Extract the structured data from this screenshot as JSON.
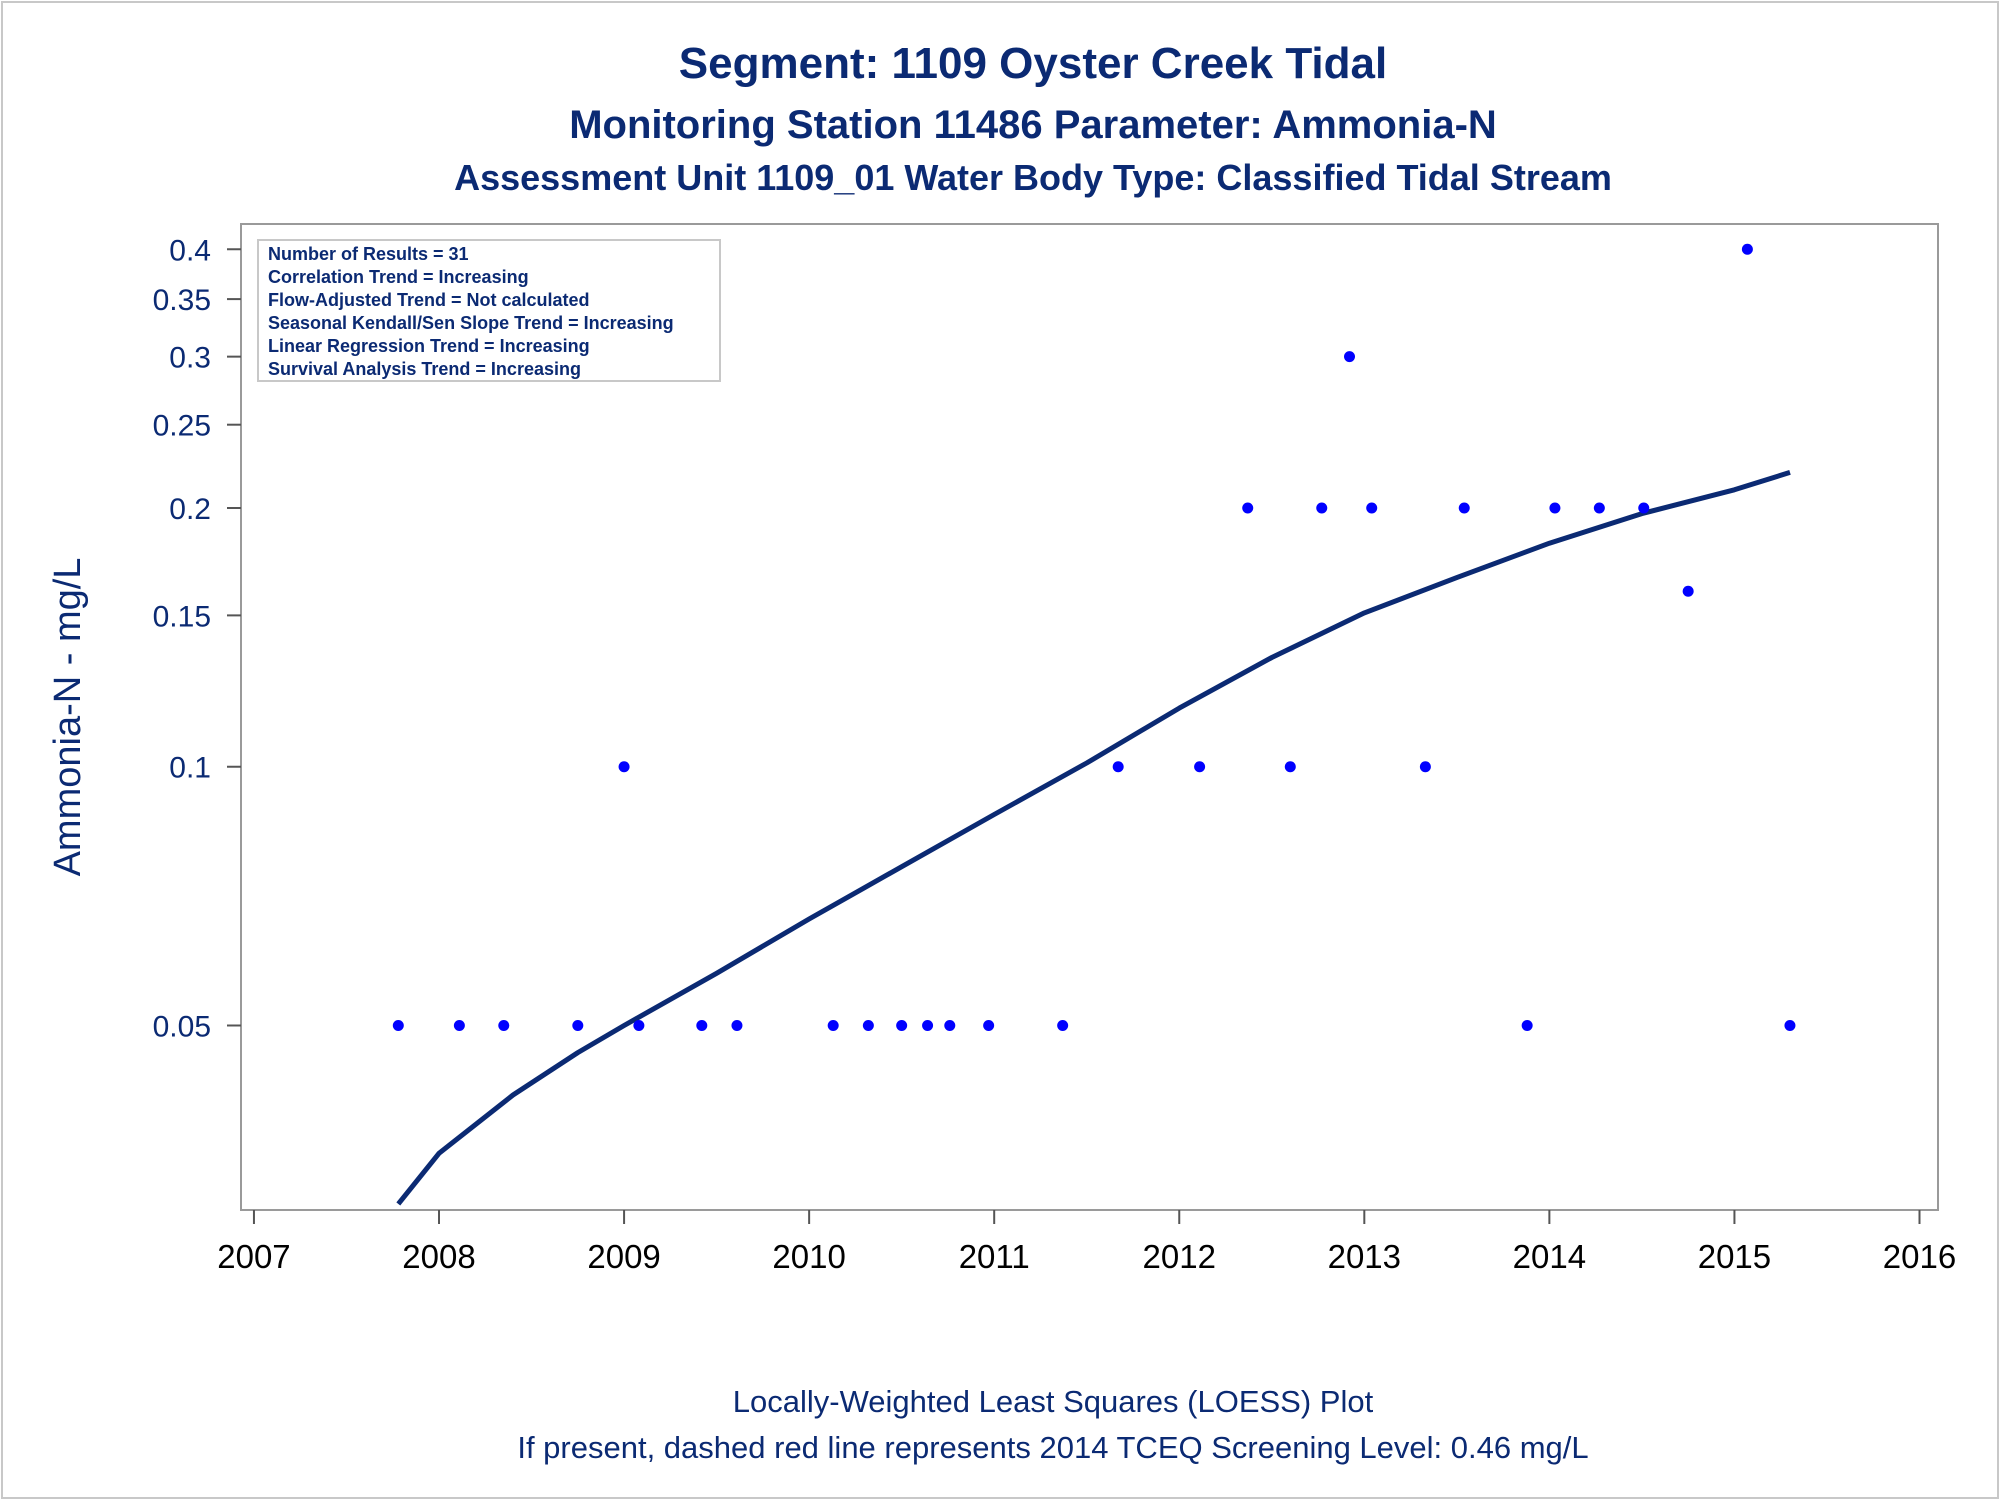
{
  "chart_data": {
    "type": "scatter",
    "title": "Segment: 1109  Oyster Creek Tidal",
    "subtitle": "Monitoring Station 11486 Parameter: Ammonia-N",
    "subtitle2": "Assessment Unit 1109_01   Water Body Type: Classified Tidal Stream",
    "xlabel": "",
    "ylabel": "Ammonia-N - mg/L",
    "x_ticks": [
      "2007",
      "2008",
      "2009",
      "2010",
      "2011",
      "2012",
      "2013",
      "2014",
      "2015",
      "2016"
    ],
    "y_ticks": [
      "0.05",
      "0.1",
      "0.15",
      "0.2",
      "0.25",
      "0.3",
      "0.35",
      "0.4"
    ],
    "xlim": [
      2006.93,
      2016.1
    ],
    "ylim": [
      0.0305,
      0.428
    ],
    "y_scale": "log",
    "grid": false,
    "stats_box": [
      "Number of Results = 31",
      "Correlation Trend = Increasing",
      "Flow-Adjusted Trend = Not calculated",
      "Seasonal Kendall/Sen Slope Trend = Increasing",
      "Linear Regression Trend = Increasing",
      "Survival Analysis Trend = Increasing"
    ],
    "stats_box_position": "top-left",
    "series": [
      {
        "type": "scatter",
        "color": "#0000ff",
        "points": [
          [
            2007.78,
            0.05
          ],
          [
            2008.11,
            0.05
          ],
          [
            2008.35,
            0.05
          ],
          [
            2008.75,
            0.05
          ],
          [
            2009.0,
            0.1
          ],
          [
            2009.08,
            0.05
          ],
          [
            2009.42,
            0.05
          ],
          [
            2009.61,
            0.05
          ],
          [
            2010.13,
            0.05
          ],
          [
            2010.32,
            0.05
          ],
          [
            2010.5,
            0.05
          ],
          [
            2010.64,
            0.05
          ],
          [
            2010.76,
            0.05
          ],
          [
            2010.97,
            0.05
          ],
          [
            2011.37,
            0.05
          ],
          [
            2011.67,
            0.1
          ],
          [
            2012.11,
            0.1
          ],
          [
            2012.37,
            0.2
          ],
          [
            2012.6,
            0.1
          ],
          [
            2012.77,
            0.2
          ],
          [
            2012.92,
            0.3
          ],
          [
            2013.04,
            0.2
          ],
          [
            2013.33,
            0.1
          ],
          [
            2013.54,
            0.2
          ],
          [
            2013.88,
            0.05
          ],
          [
            2014.03,
            0.2
          ],
          [
            2014.27,
            0.2
          ],
          [
            2014.51,
            0.2
          ],
          [
            2014.75,
            0.16
          ],
          [
            2015.07,
            0.4
          ],
          [
            2015.3,
            0.05
          ]
        ]
      },
      {
        "type": "line",
        "color": "#0b2a73",
        "points": [
          [
            2007.78,
            0.031
          ],
          [
            2008.0,
            0.0355
          ],
          [
            2008.4,
            0.0415
          ],
          [
            2008.75,
            0.0465
          ],
          [
            2009.0,
            0.05
          ],
          [
            2009.5,
            0.0575
          ],
          [
            2010.0,
            0.0665
          ],
          [
            2010.5,
            0.0765
          ],
          [
            2011.0,
            0.088
          ],
          [
            2011.5,
            0.101
          ],
          [
            2012.0,
            0.117
          ],
          [
            2012.5,
            0.134
          ],
          [
            2013.0,
            0.151
          ],
          [
            2013.5,
            0.166
          ],
          [
            2014.0,
            0.182
          ],
          [
            2014.5,
            0.197
          ],
          [
            2015.0,
            0.21
          ],
          [
            2015.3,
            0.22
          ]
        ]
      }
    ],
    "footnotes": [
      "Locally-Weighted Least Squares (LOESS) Plot",
      "If present, dashed red line represents 2014 TCEQ Screening Level: 0.46 mg/L"
    ]
  }
}
